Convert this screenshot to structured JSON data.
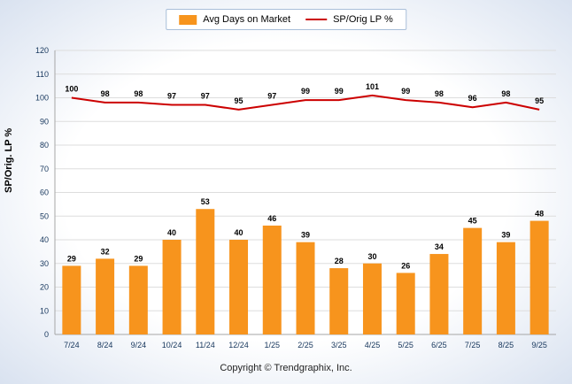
{
  "chart_data": {
    "type": "bar",
    "categories": [
      "7/24",
      "8/24",
      "9/24",
      "10/24",
      "11/24",
      "12/24",
      "1/25",
      "2/25",
      "3/25",
      "4/25",
      "5/25",
      "6/25",
      "7/25",
      "8/25",
      "9/25"
    ],
    "series": [
      {
        "name": "Avg Days on Market",
        "type": "bar",
        "color": "#F7941D",
        "values": [
          29,
          32,
          29,
          40,
          53,
          40,
          46,
          39,
          28,
          30,
          26,
          34,
          45,
          39,
          48
        ]
      },
      {
        "name": "SP/Orig LP %",
        "type": "line",
        "color": "#CC0000",
        "values": [
          100,
          98,
          98,
          97,
          97,
          95,
          97,
          99,
          99,
          101,
          99,
          98,
          96,
          98,
          95
        ]
      }
    ],
    "title": "",
    "xlabel": "",
    "ylabel": "SP/Orig. LP %",
    "ylim": [
      0,
      120
    ],
    "ytick_step": 10,
    "grid": true,
    "legend_position": "top",
    "colors": {
      "axis_text": "#16365C",
      "gridline": "#dddddd",
      "axis_line": "#a6a6a6",
      "data_label": "#000000"
    }
  },
  "footer": {
    "copyright": "Copyright © Trendgraphix, Inc."
  }
}
